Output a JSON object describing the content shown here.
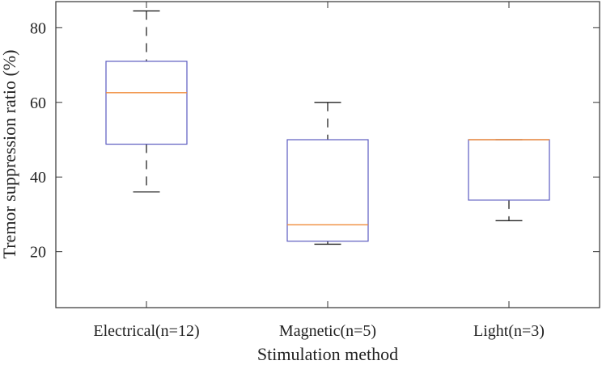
{
  "chart_data": {
    "type": "boxplot",
    "xlabel": "Stimulation method",
    "ylabel": "Tremor suppression ratio (%)",
    "ylim": [
      5,
      87
    ],
    "yticks": [
      20,
      40,
      60,
      80
    ],
    "grid": false,
    "categories": [
      "Electrical(n=12)",
      "Magnetic(n=5)",
      "Light(n=3)"
    ],
    "boxes": [
      {
        "category": "Electrical(n=12)",
        "whisker_low": 36,
        "q1": 48.8,
        "median": 62.6,
        "q3": 71,
        "whisker_high": 84.5
      },
      {
        "category": "Magnetic(n=5)",
        "whisker_low": 22,
        "q1": 22.8,
        "median": 27.2,
        "q3": 50,
        "whisker_high": 60
      },
      {
        "category": "Light(n=3)",
        "whisker_low": 28.3,
        "q1": 33.8,
        "median": 50,
        "q3": 50,
        "whisker_high": 50
      }
    ],
    "colors": {
      "box": "#5b5bc0",
      "median": "#f08c3c",
      "whisker": "#222222",
      "axis": "#333333"
    }
  }
}
